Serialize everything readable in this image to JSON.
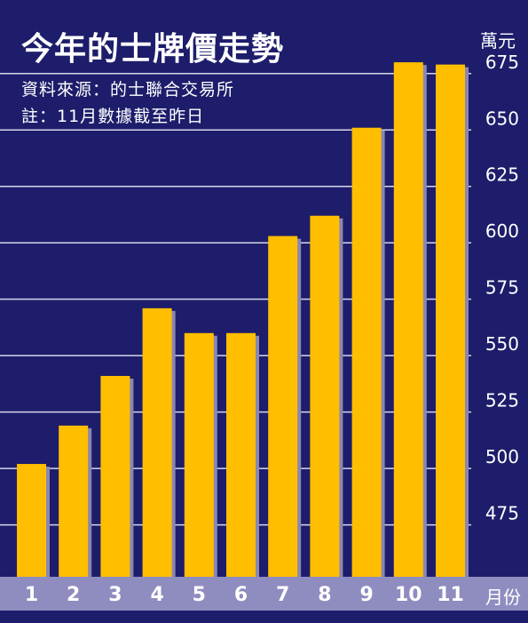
{
  "header": {
    "title": "今年的士牌價走勢",
    "source": "資料來源：的士聯合交易所",
    "note": "註：11月數據截至昨日"
  },
  "colors": {
    "background": "#1d1d6b",
    "bar": "#ffbe00",
    "bar_shadow": "#8a88b0",
    "grid": "#d6d6ea",
    "axis_band": "#8f8cc0"
  },
  "chart_data": {
    "type": "bar",
    "title": "今年的士牌價走勢",
    "xlabel": "月份",
    "ylabel": "萬元",
    "categories": [
      "1",
      "2",
      "3",
      "4",
      "5",
      "6",
      "7",
      "8",
      "9",
      "10",
      "11"
    ],
    "values": [
      502,
      519,
      541,
      571,
      560,
      560,
      603,
      612,
      651,
      680,
      679
    ],
    "yticks": [
      "475",
      "500",
      "525",
      "550",
      "575",
      "600",
      "625",
      "650",
      "675"
    ],
    "ylim": [
      452,
      682
    ],
    "grid": true,
    "legend": "none"
  }
}
